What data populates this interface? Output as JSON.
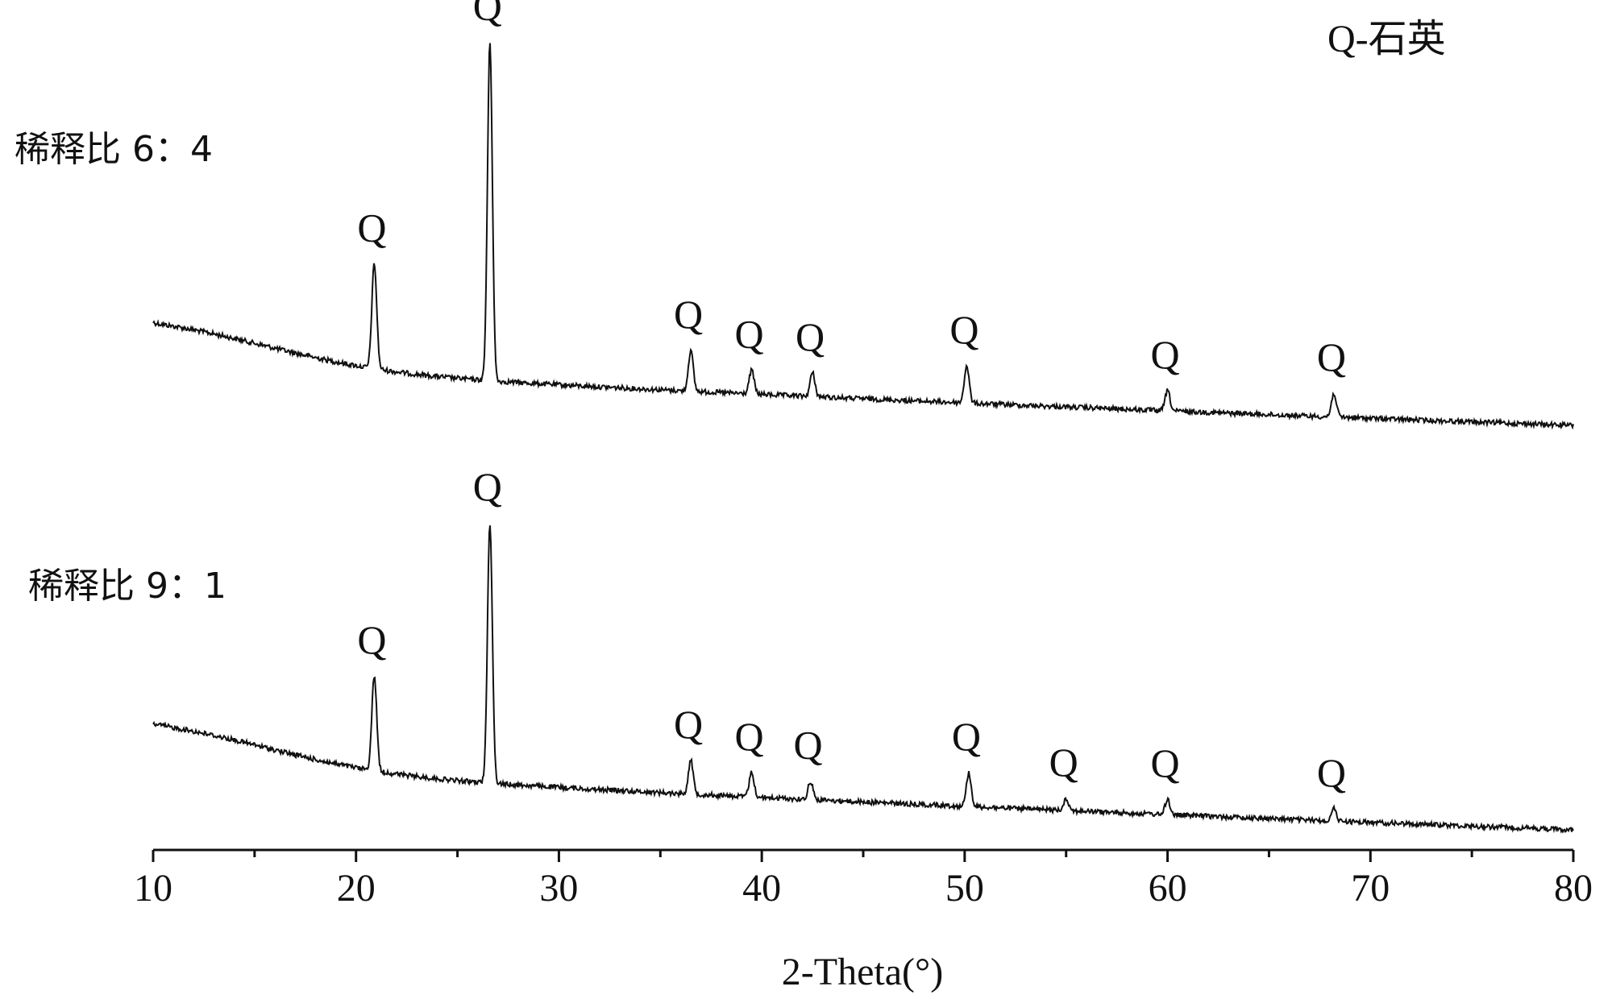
{
  "chart_data": {
    "type": "line",
    "xlabel": "2-Theta(°)",
    "x_ticks": [
      10,
      20,
      30,
      40,
      50,
      60,
      70,
      80
    ],
    "xlim": [
      10,
      80
    ],
    "ylabel": "",
    "y_axis_visible": false,
    "grid": false,
    "legend_text": "Q-石英",
    "legend_placement": "top-right",
    "line_color": "#111111",
    "series": [
      {
        "name": "稀释比 6：4",
        "label": "稀释比 6：4",
        "peaks": [
          {
            "two_theta": 20.9,
            "label": "Q",
            "height": 0.31
          },
          {
            "two_theta": 26.6,
            "label": "Q",
            "height": 1.0
          },
          {
            "two_theta": 36.5,
            "label": "Q",
            "height": 0.12
          },
          {
            "two_theta": 39.5,
            "label": "Q",
            "height": 0.07
          },
          {
            "two_theta": 42.5,
            "label": "Q",
            "height": 0.07
          },
          {
            "two_theta": 50.1,
            "label": "Q",
            "height": 0.11
          },
          {
            "two_theta": 60.0,
            "label": "Q",
            "height": 0.06
          },
          {
            "two_theta": 68.2,
            "label": "Q",
            "height": 0.07
          }
        ]
      },
      {
        "name": "稀释比 9：1",
        "label": "稀释比 9：1",
        "peaks": [
          {
            "two_theta": 20.9,
            "label": "Q",
            "height": 0.31
          },
          {
            "two_theta": 26.6,
            "label": "Q",
            "height": 0.85
          },
          {
            "two_theta": 36.5,
            "label": "Q",
            "height": 0.11
          },
          {
            "two_theta": 39.5,
            "label": "Q",
            "height": 0.08
          },
          {
            "two_theta": 42.4,
            "label": "Q",
            "height": 0.06
          },
          {
            "two_theta": 50.2,
            "label": "Q",
            "height": 0.11
          },
          {
            "two_theta": 55.0,
            "label": "Q",
            "height": 0.04
          },
          {
            "two_theta": 60.0,
            "label": "Q",
            "height": 0.05
          },
          {
            "two_theta": 68.2,
            "label": "Q",
            "height": 0.04
          }
        ]
      }
    ]
  }
}
